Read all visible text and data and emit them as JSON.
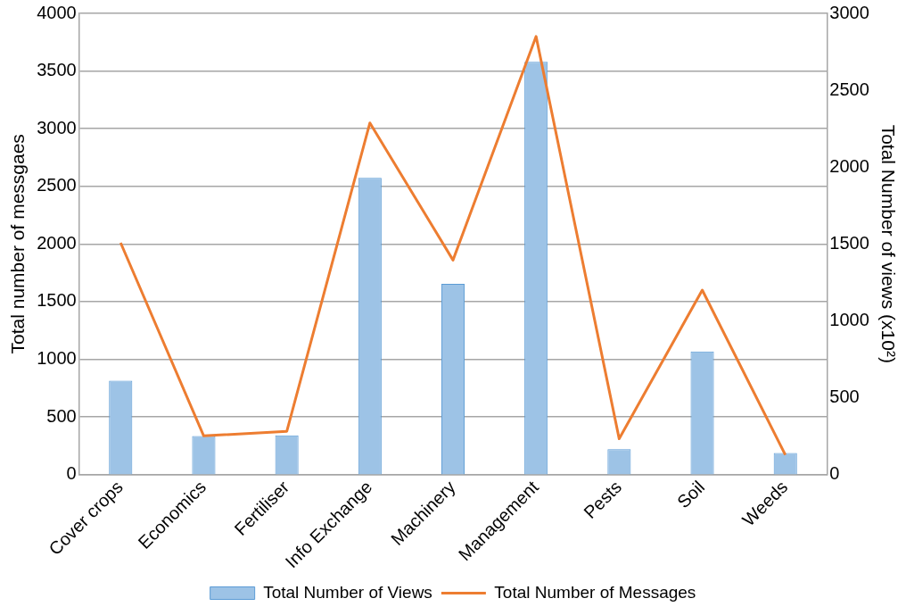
{
  "chart_data": {
    "type": "bar",
    "categories": [
      "Cover crops",
      "Economics",
      "Fertiliser",
      "Info Exchange",
      "Machinery",
      "Management",
      "Pests",
      "Soil",
      "Weeds"
    ],
    "series": [
      {
        "name": "Total Number of Views",
        "axis": "y2",
        "color": "#9dc3e6",
        "values": [
          610,
          250,
          255,
          1930,
          1240,
          2685,
          165,
          800,
          140
        ]
      },
      {
        "name": "Total Number of Messages",
        "type": "line",
        "color": "#ed7d31",
        "values": [
          2010,
          335,
          375,
          3050,
          1860,
          3800,
          310,
          1600,
          170
        ]
      }
    ],
    "ylabel": "Total number of messgaes",
    "y2label": "Total Number of views (x10²)",
    "ylim": [
      0,
      4000
    ],
    "yticks": [
      0,
      500,
      1000,
      1500,
      2000,
      2500,
      3000,
      3500,
      4000
    ],
    "y2lim": [
      0,
      3000
    ],
    "y2ticks": [
      0,
      500,
      1000,
      1500,
      2000,
      2500,
      3000
    ],
    "grid": "y",
    "legend": "bottom",
    "marker": "none",
    "line_style": "solid"
  }
}
